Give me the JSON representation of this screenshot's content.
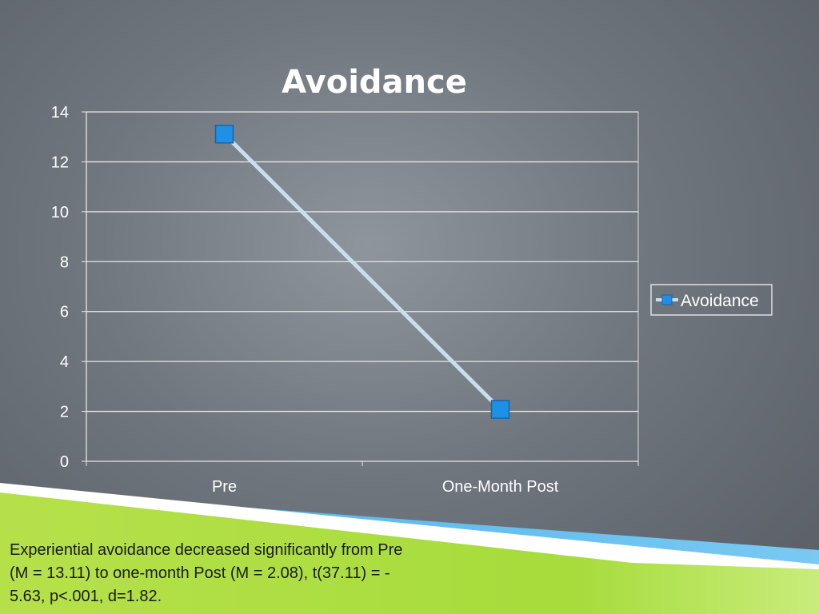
{
  "slide": {
    "caption_lines": [
      "Experiential avoidance decreased significantly from Pre",
      "(M = 13.11) to one-month Post (M = 2.08), t(37.11) = -",
      "5.63, p<.001, d=1.82."
    ]
  },
  "colors": {
    "marker": "#1e90e6",
    "line": "#c8dff0",
    "gridline": "#e6e6e6",
    "accent_green": "#9fd93a"
  },
  "chart_data": {
    "type": "line",
    "title": "Avoidance",
    "categories": [
      "Pre",
      "One-Month Post"
    ],
    "series": [
      {
        "name": "Avoidance",
        "values": [
          13.11,
          2.08
        ]
      }
    ],
    "ylim": [
      0,
      14
    ],
    "yticks": [
      0,
      2,
      4,
      6,
      8,
      10,
      12,
      14
    ],
    "grid": true,
    "legend_position": "right",
    "xlabel": "",
    "ylabel": ""
  }
}
